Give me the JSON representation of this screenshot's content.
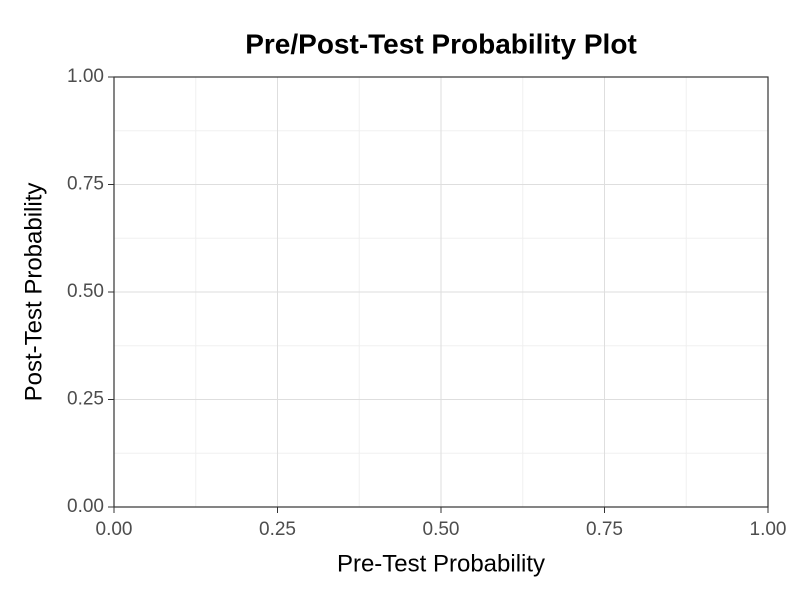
{
  "chart_data": {
    "type": "line",
    "title": "Pre/Post-Test Probability Plot",
    "x_label": "Pre-Test Probability",
    "y_label": "Post-Test Probability",
    "series": [],
    "xlim": [
      0,
      1
    ],
    "ylim": [
      0,
      1
    ],
    "xticks": [
      {
        "value": 0,
        "label": "0.00"
      },
      {
        "value": 0.25,
        "label": "0.25"
      },
      {
        "value": 0.5,
        "label": "0.50"
      },
      {
        "value": 0.75,
        "label": "0.75"
      },
      {
        "value": 1,
        "label": "1.00"
      }
    ],
    "yticks": [
      {
        "value": 0,
        "label": "0.00"
      },
      {
        "value": 0.25,
        "label": "0.25"
      },
      {
        "value": 0.5,
        "label": "0.50"
      },
      {
        "value": 0.75,
        "label": "0.75"
      },
      {
        "value": 1,
        "label": "1.00"
      }
    ],
    "grid": true
  }
}
